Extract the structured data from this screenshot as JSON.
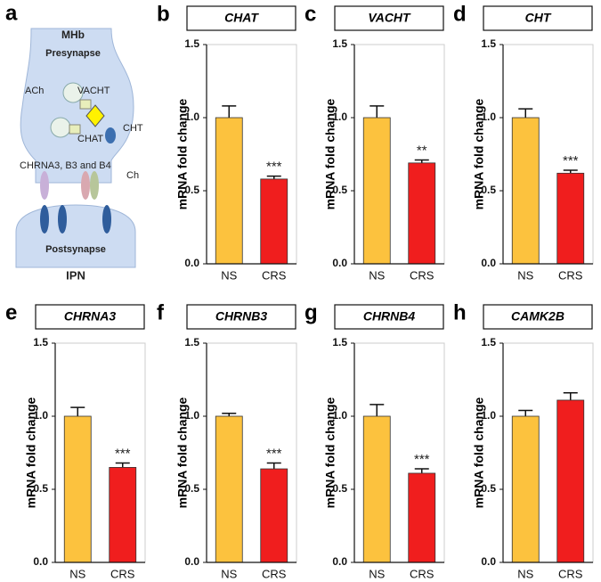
{
  "diagram": {
    "panel": "a",
    "labels": [
      "MHb",
      "Presynapse",
      "ACh",
      "VACHT",
      "CHAT",
      "CHT",
      "CHRNA3, B3 and B4",
      "Ch",
      "Postsynapse",
      "IPN"
    ]
  },
  "chart_data": [
    {
      "type": "bar",
      "panel": "b",
      "title": "CHAT",
      "ylabel": "mRNA fold change",
      "categories": [
        "NS",
        "CRS"
      ],
      "values": [
        1.0,
        0.58
      ],
      "errors": [
        0.08,
        0.02
      ],
      "significance": [
        null,
        "***"
      ],
      "colors": [
        "#fcc23e",
        "#f01e1e"
      ],
      "ylim": [
        0,
        1.5
      ],
      "yticks": [
        {
          "value": 0,
          "label": "0.0"
        },
        0.5,
        {
          "value": 1,
          "label": "1.0"
        },
        1.5
      ]
    },
    {
      "type": "bar",
      "panel": "c",
      "title": "VACHT",
      "ylabel": "mRNA fold change",
      "categories": [
        "NS",
        "CRS"
      ],
      "values": [
        1.0,
        0.69
      ],
      "errors": [
        0.08,
        0.02
      ],
      "significance": [
        null,
        "**"
      ],
      "colors": [
        "#fcc23e",
        "#f01e1e"
      ],
      "ylim": [
        0,
        1.5
      ],
      "yticks": [
        {
          "value": 0,
          "label": "0.0"
        },
        0.5,
        {
          "value": 1,
          "label": "1.0"
        },
        1.5
      ]
    },
    {
      "type": "bar",
      "panel": "d",
      "title": "CHT",
      "ylabel": "mRNA fold change",
      "categories": [
        "NS",
        "CRS"
      ],
      "values": [
        1.0,
        0.62
      ],
      "errors": [
        0.06,
        0.02
      ],
      "significance": [
        null,
        "***"
      ],
      "colors": [
        "#fcc23e",
        "#f01e1e"
      ],
      "ylim": [
        0,
        1.5
      ],
      "yticks": [
        {
          "value": 0,
          "label": "0.0"
        },
        0.5,
        {
          "value": 1,
          "label": "1.0"
        },
        1.5
      ]
    },
    {
      "type": "bar",
      "panel": "e",
      "title": "CHRNA3",
      "ylabel": "mRNA fold change",
      "categories": [
        "NS",
        "CRS"
      ],
      "values": [
        1.0,
        0.65
      ],
      "errors": [
        0.06,
        0.03
      ],
      "significance": [
        null,
        "***"
      ],
      "colors": [
        "#fcc23e",
        "#f01e1e"
      ],
      "ylim": [
        0,
        1.5
      ],
      "yticks": [
        {
          "value": 0,
          "label": "0.0"
        },
        0.5,
        {
          "value": 1,
          "label": "1.0"
        },
        1.5
      ]
    },
    {
      "type": "bar",
      "panel": "f",
      "title": "CHRNB3",
      "ylabel": "mRNA fold change",
      "categories": [
        "NS",
        "CRS"
      ],
      "values": [
        1.0,
        0.64
      ],
      "errors": [
        0.02,
        0.04
      ],
      "significance": [
        null,
        "***"
      ],
      "colors": [
        "#fcc23e",
        "#f01e1e"
      ],
      "ylim": [
        0,
        1.5
      ],
      "yticks": [
        {
          "value": 0,
          "label": "0.0"
        },
        0.5,
        {
          "value": 1,
          "label": "1.0"
        },
        1.5
      ]
    },
    {
      "type": "bar",
      "panel": "g",
      "title": "CHRNB4",
      "ylabel": "mRNA fold change",
      "categories": [
        "NS",
        "CRS"
      ],
      "values": [
        1.0,
        0.61
      ],
      "errors": [
        0.08,
        0.03
      ],
      "significance": [
        null,
        "***"
      ],
      "colors": [
        "#fcc23e",
        "#f01e1e"
      ],
      "ylim": [
        0,
        1.5
      ],
      "yticks": [
        {
          "value": 0,
          "label": "0.0"
        },
        0.5,
        {
          "value": 1,
          "label": "1.0"
        },
        1.5
      ]
    },
    {
      "type": "bar",
      "panel": "h",
      "title": "CAMK2B",
      "ylabel": "mRNA fold change",
      "categories": [
        "NS",
        "CRS"
      ],
      "values": [
        1.0,
        1.11
      ],
      "errors": [
        0.04,
        0.05
      ],
      "significance": [
        null,
        null
      ],
      "colors": [
        "#fcc23e",
        "#f01e1e"
      ],
      "ylim": [
        0,
        1.5
      ],
      "yticks": [
        {
          "value": 0,
          "label": "0.0"
        },
        0.5,
        {
          "value": 1,
          "label": "1.0"
        },
        1.5
      ]
    }
  ]
}
